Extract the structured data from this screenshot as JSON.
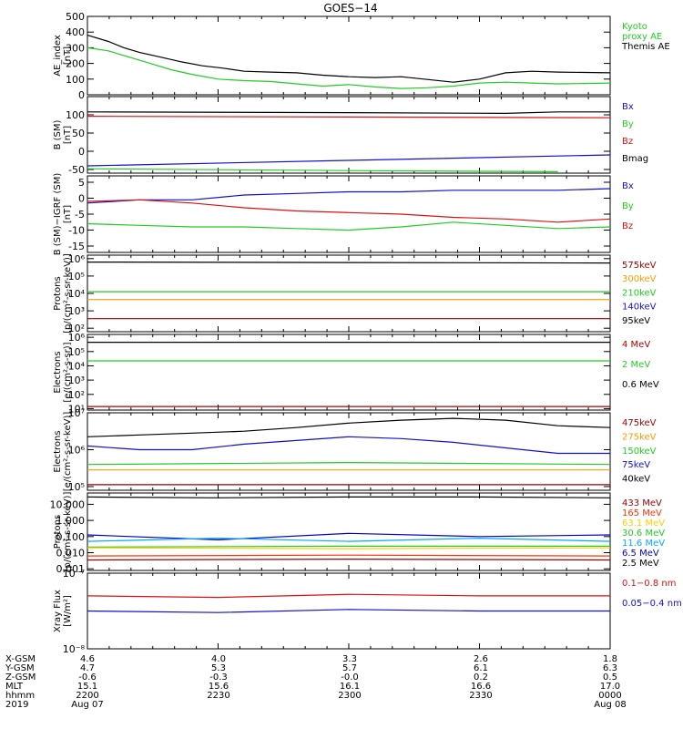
{
  "figure": {
    "title": "GOES−14",
    "footer": {
      "rows": [
        {
          "label": "X-GSM",
          "values": [
            "4.6",
            "4.0",
            "3.3",
            "2.6",
            "1.8"
          ]
        },
        {
          "label": "Y-GSM",
          "values": [
            "4.7",
            "5.3",
            "5.7",
            "6.1",
            "6.3"
          ]
        },
        {
          "label": "Z-GSM",
          "values": [
            "-0.6",
            "-0.3",
            "-0.0",
            "0.2",
            "0.5"
          ]
        },
        {
          "label": "MLT",
          "values": [
            "15.1",
            "15.6",
            "16.1",
            "16.6",
            "17.0"
          ]
        },
        {
          "label": "hhmm",
          "values": [
            "2200",
            "2230",
            "2300",
            "2330",
            "0000"
          ]
        },
        {
          "label": "2019",
          "values": [
            "Aug 07",
            "",
            "",
            "",
            "Aug 08"
          ]
        }
      ]
    }
  },
  "chart_data": [
    {
      "type": "line",
      "ylabel": [
        "AE_index",
        "[nT]"
      ],
      "ylim": [
        0,
        500
      ],
      "scale": "linear",
      "ticks": [
        0,
        100,
        200,
        300,
        400,
        500
      ],
      "tick_labels": [
        "0",
        "100",
        "200",
        "300",
        "400",
        "500"
      ],
      "legend": [
        {
          "text": [
            "Kyoto",
            "proxy AE"
          ],
          "color": "#22cc22"
        },
        {
          "text": [
            "Themis AE"
          ],
          "color": "#000000"
        }
      ],
      "series": [
        {
          "name": "Themis AE",
          "color": "#000000",
          "x": [
            0,
            4,
            7,
            10,
            14,
            18,
            22,
            26,
            30,
            35,
            40,
            45,
            50,
            55,
            60,
            70,
            75,
            80,
            85,
            90,
            100
          ],
          "y": [
            380,
            340,
            300,
            270,
            240,
            210,
            185,
            170,
            150,
            145,
            140,
            125,
            115,
            110,
            115,
            80,
            100,
            140,
            150,
            145,
            140
          ]
        },
        {
          "name": "Kyoto proxy AE",
          "color": "#22cc22",
          "x": [
            0,
            4,
            8,
            12,
            16,
            20,
            25,
            30,
            35,
            40,
            45,
            50,
            55,
            60,
            65,
            70,
            75,
            80,
            85,
            90,
            95,
            100
          ],
          "y": [
            300,
            280,
            240,
            200,
            160,
            130,
            100,
            90,
            85,
            70,
            55,
            65,
            50,
            40,
            45,
            55,
            75,
            80,
            75,
            70,
            72,
            75
          ]
        }
      ]
    },
    {
      "type": "line",
      "ylabel": [
        "B (SM)",
        "[nT]"
      ],
      "ylim": [
        -60,
        150
      ],
      "scale": "linear",
      "ticks": [
        -50,
        0,
        50,
        100
      ],
      "tick_labels": [
        "-50",
        "0",
        "50",
        "100"
      ],
      "legend": [
        {
          "text": [
            "Bx"
          ],
          "color": "#1111cc"
        },
        {
          "text": [
            "By"
          ],
          "color": "#22cc22"
        },
        {
          "text": [
            "Bz"
          ],
          "color": "#dd1111"
        },
        {
          "text": [
            "Bmag"
          ],
          "color": "#000000"
        }
      ],
      "series": [
        {
          "name": "Bmag",
          "color": "#000000",
          "x": [
            0,
            50,
            80,
            90,
            100
          ],
          "y": [
            108,
            106,
            104,
            108,
            108
          ]
        },
        {
          "name": "Bz",
          "color": "#dd1111",
          "x": [
            0,
            50,
            100
          ],
          "y": [
            96,
            94,
            92
          ]
        },
        {
          "name": "Bx",
          "color": "#1111cc",
          "x": [
            0,
            50,
            100
          ],
          "y": [
            -40,
            -25,
            -10
          ]
        },
        {
          "name": "By",
          "color": "#22cc22",
          "x": [
            0,
            50,
            90
          ],
          "y": [
            -48,
            -53,
            -56
          ]
        }
      ]
    },
    {
      "type": "line",
      "ylabel": [
        "B (SM)−IGRF (SM)",
        "[nT]"
      ],
      "ylim": [
        -17,
        7
      ],
      "scale": "linear",
      "ticks": [
        -15,
        -10,
        -5,
        0,
        5
      ],
      "tick_labels": [
        "-15",
        "-10",
        "-5",
        "0",
        "5"
      ],
      "legend": [
        {
          "text": [
            "Bx"
          ],
          "color": "#1111cc"
        },
        {
          "text": [
            "By"
          ],
          "color": "#22cc22"
        },
        {
          "text": [
            "Bz"
          ],
          "color": "#dd1111"
        }
      ],
      "series": [
        {
          "name": "Bx",
          "color": "#1111cc",
          "x": [
            0,
            10,
            20,
            30,
            40,
            50,
            60,
            70,
            80,
            90,
            100
          ],
          "y": [
            -1.5,
            -0.5,
            -0.5,
            1,
            1.5,
            2,
            2,
            2.5,
            2.5,
            2.5,
            3
          ]
        },
        {
          "name": "Bz",
          "color": "#dd1111",
          "x": [
            0,
            10,
            20,
            30,
            40,
            50,
            60,
            70,
            80,
            90,
            100
          ],
          "y": [
            -1,
            -0.5,
            -1.5,
            -3,
            -4,
            -4.5,
            -5,
            -6,
            -6.5,
            -7.5,
            -6.5
          ]
        },
        {
          "name": "By",
          "color": "#22cc22",
          "x": [
            0,
            10,
            20,
            30,
            40,
            50,
            60,
            70,
            80,
            90,
            100
          ],
          "y": [
            -8,
            -8.5,
            -9,
            -9,
            -9.5,
            -10,
            -9,
            -7.5,
            -8.5,
            -9.5,
            -9
          ]
        }
      ]
    },
    {
      "type": "line",
      "ylabel": [
        "Protons",
        "[p/(cm²-s-sr-keV)]"
      ],
      "ylim": [
        1.8,
        6.2
      ],
      "scale": "log",
      "ticks": [
        2,
        3,
        4,
        5,
        6
      ],
      "tick_labels": [
        "10²",
        "10³",
        "10⁴",
        "10⁵",
        "10⁶"
      ],
      "legend": [
        {
          "text": [
            "575keV"
          ],
          "color": "#990000"
        },
        {
          "text": [
            "300keV"
          ],
          "color": "#ff9900"
        },
        {
          "text": [
            "210keV"
          ],
          "color": "#22cc22"
        },
        {
          "text": [
            "140keV"
          ],
          "color": "#1111cc"
        },
        {
          "text": [
            "95keV"
          ],
          "color": "#000000"
        }
      ],
      "series": [
        {
          "name": "95keV",
          "color": "#000000",
          "x": [
            0,
            100
          ],
          "y": [
            5.8,
            5.75
          ]
        },
        {
          "name": "210keV",
          "color": "#22cc22",
          "x": [
            0,
            100
          ],
          "y": [
            4.1,
            4.1
          ]
        },
        {
          "name": "300keV",
          "color": "#ff9900",
          "x": [
            0,
            100
          ],
          "y": [
            3.65,
            3.65
          ]
        },
        {
          "name": "575keV",
          "color": "#990000",
          "x": [
            0,
            100
          ],
          "y": [
            2.55,
            2.55
          ]
        }
      ]
    },
    {
      "type": "line",
      "ylabel": [
        "Electrons",
        "[e/(cm²-s-sr)]"
      ],
      "ylim": [
        0.9,
        6.2
      ],
      "scale": "log",
      "ticks": [
        1,
        2,
        3,
        4,
        5,
        6
      ],
      "tick_labels": [
        "10¹",
        "10²",
        "10³",
        "10⁴",
        "10⁵",
        "10⁶"
      ],
      "legend": [
        {
          "text": [
            "4 MeV"
          ],
          "color": "#aa0000"
        },
        {
          "text": [
            "2 MeV"
          ],
          "color": "#22cc22"
        },
        {
          "text": [
            "0.6 MeV"
          ],
          "color": "#000000"
        }
      ],
      "series": [
        {
          "name": "0.6 MeV",
          "color": "#000000",
          "x": [
            0,
            100
          ],
          "y": [
            5.65,
            5.65
          ]
        },
        {
          "name": "2 MeV",
          "color": "#22cc22",
          "x": [
            0,
            100
          ],
          "y": [
            4.35,
            4.35
          ]
        },
        {
          "name": "4 MeV",
          "color": "#aa0000",
          "x": [
            0,
            100
          ],
          "y": [
            1.15,
            1.15
          ]
        }
      ]
    },
    {
      "type": "line",
      "ylabel": [
        "Electrons",
        "[e/(cm²-s-sr-keV)]"
      ],
      "ylim": [
        4.9,
        7.0
      ],
      "scale": "log",
      "ticks": [
        5,
        6,
        7
      ],
      "tick_labels": [
        "10⁵",
        "10⁶",
        "10⁷"
      ],
      "legend": [
        {
          "text": [
            "475keV"
          ],
          "color": "#990000"
        },
        {
          "text": [
            "275keV"
          ],
          "color": "#ff9900"
        },
        {
          "text": [
            "150keV"
          ],
          "color": "#22cc22"
        },
        {
          "text": [
            "75keV"
          ],
          "color": "#1111cc"
        },
        {
          "text": [
            "40keV"
          ],
          "color": "#000000"
        }
      ],
      "series": [
        {
          "name": "40keV",
          "color": "#000000",
          "x": [
            0,
            10,
            20,
            30,
            40,
            50,
            60,
            70,
            80,
            90,
            100
          ],
          "y": [
            6.35,
            6.4,
            6.45,
            6.5,
            6.6,
            6.72,
            6.8,
            6.85,
            6.8,
            6.65,
            6.6
          ]
        },
        {
          "name": "75keV",
          "color": "#1111cc",
          "x": [
            0,
            10,
            20,
            30,
            40,
            50,
            60,
            70,
            80,
            90,
            100
          ],
          "y": [
            6.1,
            6.0,
            6.0,
            6.15,
            6.25,
            6.35,
            6.3,
            6.2,
            6.05,
            5.9,
            5.9
          ]
        },
        {
          "name": "150keV",
          "color": "#22cc22",
          "x": [
            0,
            50,
            100
          ],
          "y": [
            5.6,
            5.65,
            5.6
          ]
        },
        {
          "name": "275keV",
          "color": "#ff9900",
          "x": [
            0,
            50,
            100
          ],
          "y": [
            5.45,
            5.45,
            5.45
          ]
        },
        {
          "name": "475keV",
          "color": "#990000",
          "x": [
            0,
            50,
            100
          ],
          "y": [
            5.05,
            5.05,
            5.05
          ]
        }
      ]
    },
    {
      "type": "line",
      "ylabel": [
        "Protons",
        "[p/(cm²-s-sr-keV)]"
      ],
      "ylim": [
        -3.1,
        1.7
      ],
      "scale": "log",
      "ticks": [
        -3,
        -2,
        -1,
        0,
        1
      ],
      "tick_labels": [
        "0.001",
        "0.010",
        "0.100",
        "1.000",
        "10.000"
      ],
      "legend": [
        {
          "text": [
            "433 MeV"
          ],
          "color": "#990000"
        },
        {
          "text": [
            "165 MeV"
          ],
          "color": "#ff3300"
        },
        {
          "text": [
            "63.1 MeV"
          ],
          "color": "#ffcc00"
        },
        {
          "text": [
            "30.6 MeV"
          ],
          "color": "#22cc22"
        },
        {
          "text": [
            "11.6 MeV"
          ],
          "color": "#00aaff"
        },
        {
          "text": [
            "6.5 MeV"
          ],
          "color": "#0000cc"
        },
        {
          "text": [
            "2.5 MeV"
          ],
          "color": "#000000"
        }
      ],
      "series": [
        {
          "name": "2.5 MeV",
          "color": "#000000",
          "x": [
            0,
            25,
            50,
            75,
            100
          ],
          "y": [
            1.45,
            1.4,
            1.45,
            1.45,
            1.4
          ]
        },
        {
          "name": "6.5 MeV",
          "color": "#0000cc",
          "x": [
            0,
            25,
            50,
            75,
            100
          ],
          "y": [
            -0.9,
            -1.2,
            -0.8,
            -1.0,
            -0.9
          ]
        },
        {
          "name": "11.6 MeV",
          "color": "#00aaff",
          "x": [
            0,
            25,
            50,
            75,
            100
          ],
          "y": [
            -1.3,
            -1.1,
            -1.3,
            -1.1,
            -1.3
          ]
        },
        {
          "name": "30.6 MeV",
          "color": "#22cc22",
          "x": [
            0,
            50,
            100
          ],
          "y": [
            -1.65,
            -1.6,
            -1.6
          ]
        },
        {
          "name": "63.1 MeV",
          "color": "#ffcc00",
          "x": [
            0,
            50,
            100
          ],
          "y": [
            -1.7,
            -1.75,
            -1.7
          ]
        },
        {
          "name": "165 MeV",
          "color": "#ff3300",
          "x": [
            0,
            50,
            100
          ],
          "y": [
            -2.2,
            -2.15,
            -2.2
          ]
        },
        {
          "name": "433 MeV",
          "color": "#990000",
          "x": [
            0,
            50,
            100
          ],
          "y": [
            -2.45,
            -2.4,
            -2.45
          ]
        }
      ]
    },
    {
      "type": "line",
      "ylabel": [
        "Xray Flux",
        "[W/m²]"
      ],
      "ylim": [
        -8,
        -7
      ],
      "scale": "log",
      "ticks": [
        -8,
        -7
      ],
      "tick_labels": [
        "10⁻⁸",
        "10⁻⁷"
      ],
      "legend": [
        {
          "text": [
            "0.1−0.8 nm"
          ],
          "color": "#dd1111"
        },
        {
          "text": [
            "0.05−0.4 nm"
          ],
          "color": "#1111cc"
        }
      ],
      "series": [
        {
          "name": "0.1−0.8 nm",
          "color": "#dd1111",
          "x": [
            0,
            25,
            50,
            75,
            100
          ],
          "y": [
            -7.3,
            -7.32,
            -7.28,
            -7.3,
            -7.3
          ]
        },
        {
          "name": "0.05−0.4 nm",
          "color": "#1111cc",
          "x": [
            0,
            25,
            50,
            75,
            100
          ],
          "y": [
            -7.5,
            -7.52,
            -7.48,
            -7.5,
            -7.5
          ]
        }
      ]
    }
  ]
}
